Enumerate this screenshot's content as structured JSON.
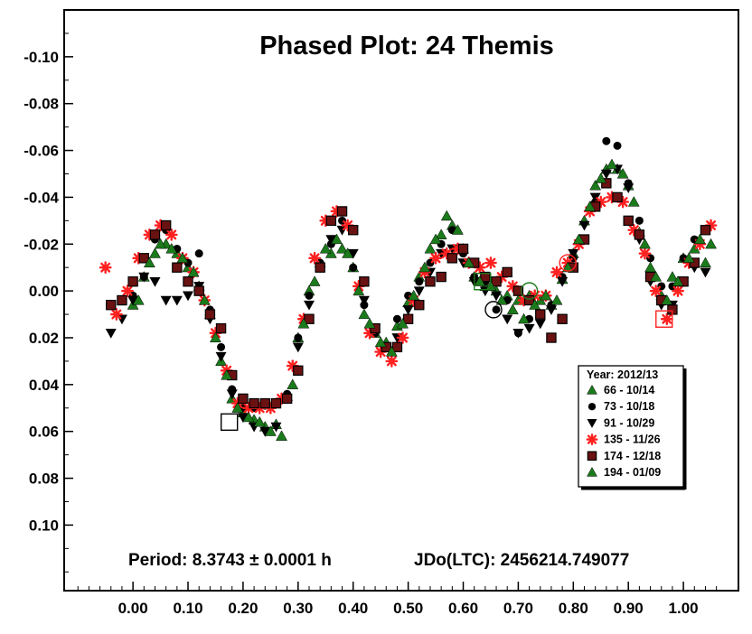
{
  "chart_data": {
    "type": "scatter",
    "title": "Phased Plot: 24 Themis",
    "footer_period": "Period: 8.3743 ± 0.0001 h",
    "footer_epoch": "JDo(LTC): 2456214.749077",
    "xlabel": "",
    "ylabel": "",
    "xlim": [
      -0.125,
      1.1
    ],
    "ylim": [
      -0.12,
      0.128
    ],
    "y_inverted": true,
    "grid": false,
    "x_ticks": [
      "0.00",
      "0.10",
      "0.20",
      "0.30",
      "0.40",
      "0.50",
      "0.60",
      "0.70",
      "0.80",
      "0.90",
      "1.00"
    ],
    "y_ticks": [
      "-0.10",
      "-0.08",
      "-0.06",
      "-0.04",
      "-0.02",
      "0.00",
      "0.02",
      "0.04",
      "0.06",
      "0.08",
      "0.10"
    ],
    "legend": {
      "placement": "right-lower",
      "title": "Year: 2012/13",
      "entries": [
        "66 - 10/14",
        "73 - 10/18",
        "91 - 10/29",
        "135 - 11/26",
        "174 - 12/18",
        "194 - 01/09"
      ]
    },
    "series": [
      {
        "name": "66 - 10/14",
        "marker": "triangle-up",
        "color": "#1b7a1b",
        "x": [
          0.0,
          0.02,
          0.04,
          0.06,
          0.08,
          0.1,
          0.12,
          0.14,
          0.16,
          0.18,
          0.2,
          0.22,
          0.24,
          0.26,
          0.28,
          0.3,
          0.32,
          0.34,
          0.36,
          0.38,
          0.4,
          0.42,
          0.44,
          0.46,
          0.48,
          0.5,
          0.52,
          0.54,
          0.56,
          0.58,
          0.6,
          0.62,
          0.64,
          0.66,
          0.68,
          0.7,
          0.72,
          0.74,
          0.76,
          0.78,
          0.8,
          0.82,
          0.84,
          0.86,
          0.88,
          0.9,
          0.92,
          0.94,
          0.96,
          0.98,
          1.0,
          1.02,
          1.04
        ],
        "y": [
          0.006,
          -0.006,
          -0.016,
          -0.02,
          -0.016,
          -0.01,
          -0.002,
          0.01,
          0.03,
          0.046,
          0.052,
          0.055,
          0.058,
          0.057,
          0.045,
          0.02,
          0.0,
          -0.012,
          -0.016,
          -0.018,
          -0.01,
          0.01,
          0.018,
          0.022,
          0.015,
          0.005,
          -0.006,
          -0.018,
          -0.024,
          -0.028,
          -0.018,
          -0.006,
          -0.002,
          0.0,
          0.002,
          0.004,
          0.002,
          0.004,
          0.006,
          -0.005,
          -0.016,
          -0.03,
          -0.045,
          -0.052,
          -0.052,
          -0.045,
          -0.025,
          -0.01,
          0.002,
          -0.006,
          -0.014,
          -0.018,
          -0.012
        ]
      },
      {
        "name": "73 - 10/18",
        "marker": "circle",
        "color": "#000000",
        "x": [
          0.0,
          0.02,
          0.04,
          0.06,
          0.08,
          0.1,
          0.12,
          0.14,
          0.16,
          0.18,
          0.2,
          0.22,
          0.24,
          0.26,
          0.28,
          0.3,
          0.32,
          0.34,
          0.36,
          0.38,
          0.4,
          0.42,
          0.44,
          0.46,
          0.48,
          0.5,
          0.52,
          0.54,
          0.56,
          0.58,
          0.6,
          0.62,
          0.64,
          0.66,
          0.68,
          0.7,
          0.72,
          0.74,
          0.76,
          0.78,
          0.8,
          0.82,
          0.84,
          0.86,
          0.88,
          0.9,
          0.92,
          0.94,
          0.96,
          0.98,
          1.0,
          1.02,
          1.04
        ],
        "y": [
          0.002,
          -0.006,
          -0.022,
          -0.026,
          -0.018,
          -0.012,
          -0.016,
          0.008,
          0.024,
          0.042,
          0.05,
          0.05,
          0.049,
          0.048,
          0.044,
          0.02,
          0.002,
          -0.012,
          -0.02,
          -0.03,
          -0.01,
          0.006,
          0.018,
          0.024,
          0.012,
          0.002,
          -0.004,
          -0.012,
          -0.02,
          -0.026,
          -0.016,
          -0.006,
          -0.004,
          0.008,
          0.004,
          0.018,
          0.012,
          0.01,
          0.006,
          -0.006,
          -0.014,
          -0.022,
          -0.038,
          -0.064,
          -0.062,
          -0.046,
          -0.03,
          -0.014,
          -0.002,
          -0.002,
          -0.014,
          -0.022,
          -0.026
        ]
      },
      {
        "name": "91 - 10/29",
        "marker": "triangle-down",
        "color": "#000000",
        "x": [
          -0.04,
          -0.02,
          0.0,
          0.02,
          0.04,
          0.06,
          0.08,
          0.1,
          0.12,
          0.14,
          0.16,
          0.18,
          0.2,
          0.22,
          0.24,
          0.26,
          0.28,
          0.3,
          0.32,
          0.34,
          0.36,
          0.38,
          0.4,
          0.42,
          0.44,
          0.46,
          0.48,
          0.5,
          0.52,
          0.54,
          0.56,
          0.58,
          0.6,
          0.62,
          0.64,
          0.66,
          0.68,
          0.7,
          0.72,
          0.74,
          0.76,
          0.78,
          0.8,
          0.82,
          0.84,
          0.86,
          0.88,
          0.9,
          0.92,
          0.94,
          0.96,
          0.98,
          1.0,
          1.02,
          1.04
        ],
        "y": [
          0.018,
          0.012,
          0.004,
          -0.006,
          -0.004,
          0.004,
          0.004,
          0.002,
          -0.002,
          0.012,
          0.028,
          0.044,
          0.054,
          0.058,
          0.06,
          0.058,
          0.046,
          0.024,
          0.006,
          -0.01,
          -0.022,
          -0.026,
          -0.016,
          0.004,
          0.016,
          0.024,
          0.02,
          0.008,
          0.0,
          -0.008,
          -0.016,
          -0.018,
          -0.012,
          -0.004,
          0.0,
          0.002,
          0.012,
          0.018,
          0.016,
          0.014,
          0.008,
          -0.004,
          -0.016,
          -0.028,
          -0.04,
          -0.05,
          -0.052,
          -0.044,
          -0.022,
          -0.004,
          0.006,
          0.006,
          -0.004,
          -0.01,
          -0.008
        ]
      },
      {
        "name": "135 - 11/26",
        "marker": "asterisk",
        "color": "#ff2020",
        "x": [
          -0.05,
          -0.03,
          -0.01,
          0.01,
          0.03,
          0.05,
          0.07,
          0.09,
          0.11,
          0.13,
          0.15,
          0.17,
          0.19,
          0.21,
          0.23,
          0.25,
          0.27,
          0.29,
          0.31,
          0.33,
          0.35,
          0.37,
          0.39,
          0.41,
          0.43,
          0.45,
          0.47,
          0.49,
          0.51,
          0.53,
          0.55,
          0.57,
          0.59,
          0.61,
          0.63,
          0.65,
          0.67,
          0.69,
          0.71,
          0.73,
          0.75,
          0.77,
          0.79,
          0.81,
          0.83,
          0.85,
          0.87,
          0.89,
          0.91,
          0.93,
          0.95,
          0.97,
          0.99,
          1.01,
          1.03,
          1.05
        ],
        "y": [
          -0.01,
          0.01,
          0.0,
          -0.014,
          -0.024,
          -0.028,
          -0.024,
          -0.014,
          -0.008,
          0.004,
          0.018,
          0.034,
          0.048,
          0.05,
          0.05,
          0.05,
          0.046,
          0.032,
          0.012,
          -0.014,
          -0.03,
          -0.034,
          -0.028,
          -0.002,
          0.018,
          0.026,
          0.03,
          0.02,
          0.004,
          -0.008,
          -0.014,
          -0.016,
          -0.018,
          -0.012,
          -0.01,
          -0.012,
          -0.006,
          -0.002,
          0.004,
          0.002,
          0.002,
          -0.008,
          -0.012,
          -0.02,
          -0.034,
          -0.038,
          -0.04,
          -0.038,
          -0.026,
          -0.016,
          0.0,
          0.012,
          0.0,
          -0.012,
          -0.02,
          -0.028
        ]
      },
      {
        "name": "174 - 12/18",
        "marker": "square",
        "color": "#6a1212",
        "x": [
          -0.04,
          -0.02,
          0.0,
          0.02,
          0.04,
          0.06,
          0.08,
          0.1,
          0.12,
          0.14,
          0.16,
          0.18,
          0.2,
          0.22,
          0.24,
          0.26,
          0.28,
          0.3,
          0.32,
          0.34,
          0.36,
          0.38,
          0.4,
          0.42,
          0.44,
          0.46,
          0.48,
          0.5,
          0.52,
          0.54,
          0.56,
          0.58,
          0.6,
          0.62,
          0.64,
          0.66,
          0.68,
          0.7,
          0.72,
          0.74,
          0.76,
          0.78,
          0.8,
          0.82,
          0.84,
          0.86,
          0.88,
          0.9,
          0.92,
          0.94,
          0.96,
          0.98,
          1.0,
          1.02,
          1.04
        ],
        "y": [
          0.006,
          0.004,
          -0.004,
          -0.014,
          -0.024,
          -0.028,
          -0.01,
          -0.004,
          0.0,
          0.01,
          0.016,
          0.036,
          0.046,
          0.048,
          0.048,
          0.048,
          0.046,
          0.034,
          0.012,
          -0.01,
          -0.03,
          -0.034,
          -0.026,
          -0.004,
          0.016,
          0.024,
          0.024,
          0.012,
          0.006,
          -0.004,
          -0.006,
          -0.014,
          -0.018,
          -0.012,
          -0.006,
          -0.004,
          -0.008,
          0.0,
          0.004,
          0.01,
          0.02,
          0.012,
          -0.01,
          -0.022,
          -0.036,
          -0.046,
          -0.04,
          -0.03,
          -0.024,
          -0.006,
          0.004,
          0.008,
          -0.004,
          -0.012,
          -0.026
        ]
      },
      {
        "name": "194 - 01/09",
        "marker": "triangle-up",
        "color": "#1b7a1b",
        "x": [
          0.01,
          0.03,
          0.05,
          0.07,
          0.09,
          0.11,
          0.13,
          0.15,
          0.17,
          0.19,
          0.21,
          0.23,
          0.25,
          0.27,
          0.29,
          0.31,
          0.33,
          0.35,
          0.37,
          0.39,
          0.41,
          0.43,
          0.45,
          0.47,
          0.49,
          0.51,
          0.53,
          0.55,
          0.57,
          0.59,
          0.61,
          0.63,
          0.65,
          0.67,
          0.69,
          0.71,
          0.73,
          0.75,
          0.77,
          0.79,
          0.81,
          0.83,
          0.85,
          0.87,
          0.89,
          0.91,
          0.93,
          0.95,
          0.97,
          0.99,
          1.01,
          1.03,
          1.05
        ],
        "y": [
          0.004,
          -0.012,
          -0.02,
          -0.018,
          -0.014,
          -0.008,
          0.004,
          0.02,
          0.036,
          0.05,
          0.054,
          0.056,
          0.06,
          0.062,
          0.04,
          0.014,
          -0.004,
          -0.018,
          -0.022,
          -0.016,
          0.0,
          0.014,
          0.022,
          0.026,
          0.014,
          0.002,
          -0.01,
          -0.022,
          -0.032,
          -0.026,
          -0.012,
          -0.004,
          -0.002,
          0.004,
          0.008,
          0.012,
          0.006,
          0.002,
          0.004,
          -0.01,
          -0.022,
          -0.036,
          -0.048,
          -0.054,
          -0.05,
          -0.038,
          -0.02,
          -0.006,
          0.004,
          -0.004,
          -0.014,
          -0.022,
          -0.02
        ]
      }
    ],
    "highlight_points": [
      {
        "x": 0.175,
        "y": 0.056,
        "marker": "open-square",
        "color": "#000000"
      },
      {
        "x": 0.655,
        "y": 0.008,
        "marker": "open-circle",
        "color": "#000000"
      },
      {
        "x": 0.635,
        "y": -0.004,
        "marker": "open-square",
        "color": "#1b7a1b"
      },
      {
        "x": 0.72,
        "y": 0.0,
        "marker": "open-circle",
        "color": "#1b7a1b"
      },
      {
        "x": 0.79,
        "y": -0.012,
        "marker": "open-circle",
        "color": "#ff2020"
      },
      {
        "x": 0.965,
        "y": 0.012,
        "marker": "open-square",
        "color": "#ff2020"
      }
    ]
  }
}
